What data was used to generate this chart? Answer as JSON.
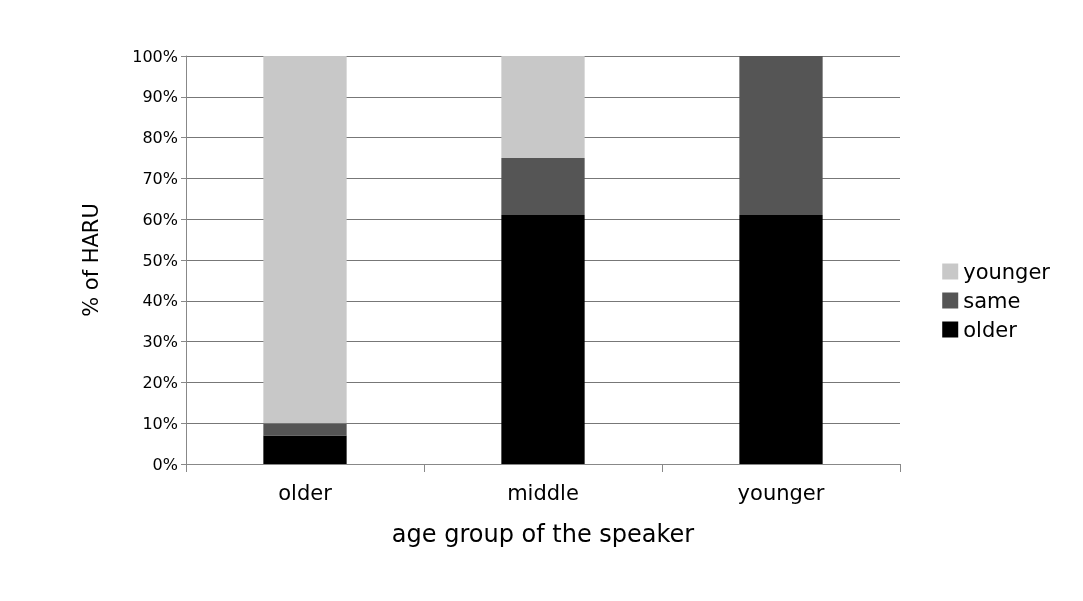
{
  "chart_data": {
    "type": "bar",
    "stacked": true,
    "xlabel": "age group of the speaker",
    "ylabel": "% of HARU",
    "categories": [
      "older",
      "middle",
      "younger"
    ],
    "series": [
      {
        "name": "older",
        "color": "#000000",
        "values": [
          7,
          61,
          61
        ]
      },
      {
        "name": "same",
        "color": "#555555",
        "values": [
          3,
          14,
          39
        ]
      },
      {
        "name": "younger",
        "color": "#c8c8c8",
        "values": [
          90,
          25,
          0
        ]
      }
    ],
    "ylim": [
      0,
      100
    ],
    "yticks": [
      {
        "value": 0,
        "label": "0%"
      },
      {
        "value": 10,
        "label": "10%"
      },
      {
        "value": 20,
        "label": "20%"
      },
      {
        "value": 30,
        "label": "30%"
      },
      {
        "value": 40,
        "label": "40%"
      },
      {
        "value": 50,
        "label": "50%"
      },
      {
        "value": 60,
        "label": "60%"
      },
      {
        "value": 70,
        "label": "70%"
      },
      {
        "value": 80,
        "label": "80%"
      },
      {
        "value": 90,
        "label": "90%"
      },
      {
        "value": 100,
        "label": "100%"
      }
    ],
    "grid": "y",
    "legend": "right"
  }
}
